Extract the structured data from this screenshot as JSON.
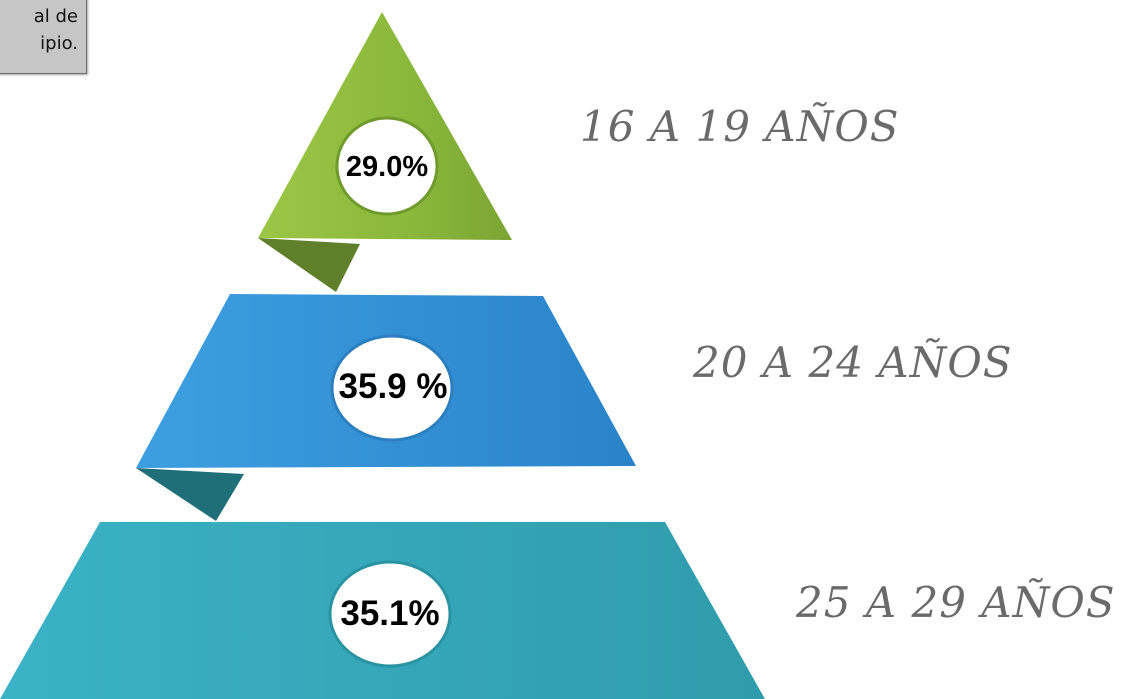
{
  "note": {
    "line1": "al de",
    "line2": "ipio."
  },
  "levels": [
    {
      "label": "16 A 19 AÑOS",
      "value_text": "29.0%",
      "value": 29.0,
      "color": "#8db83d"
    },
    {
      "label": "20 A 24 AÑOS",
      "value_text": "35.9 %",
      "value": 35.9,
      "color": "#2f91d6"
    },
    {
      "label": "25 A 29 AÑOS",
      "value_text": "35.1%",
      "value": 35.1,
      "color": "#33a8bd"
    }
  ]
}
